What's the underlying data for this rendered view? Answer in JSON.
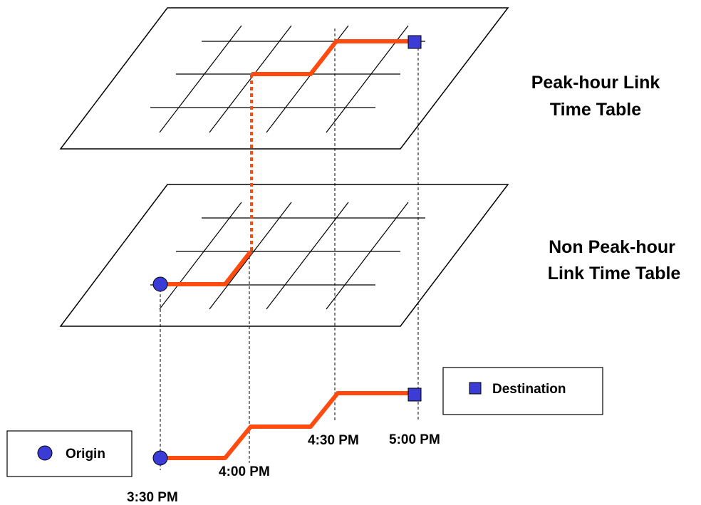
{
  "layers": {
    "peak": {
      "label_line1": "Peak-hour Link",
      "label_line2": "Time Table"
    },
    "non_peak": {
      "label_line1": "Non Peak-hour",
      "label_line2": "Link Time Table"
    }
  },
  "legend": {
    "origin": "Origin",
    "destination": "Destination"
  },
  "times": [
    "3:30 PM",
    "4:00 PM",
    "4:30 PM",
    "5:00 PM"
  ],
  "colors": {
    "route": "#ff4a10",
    "marker": "#3b3bd6",
    "line": "#000000"
  },
  "icons": {
    "origin": "origin-circle-icon",
    "destination": "destination-square-icon"
  }
}
